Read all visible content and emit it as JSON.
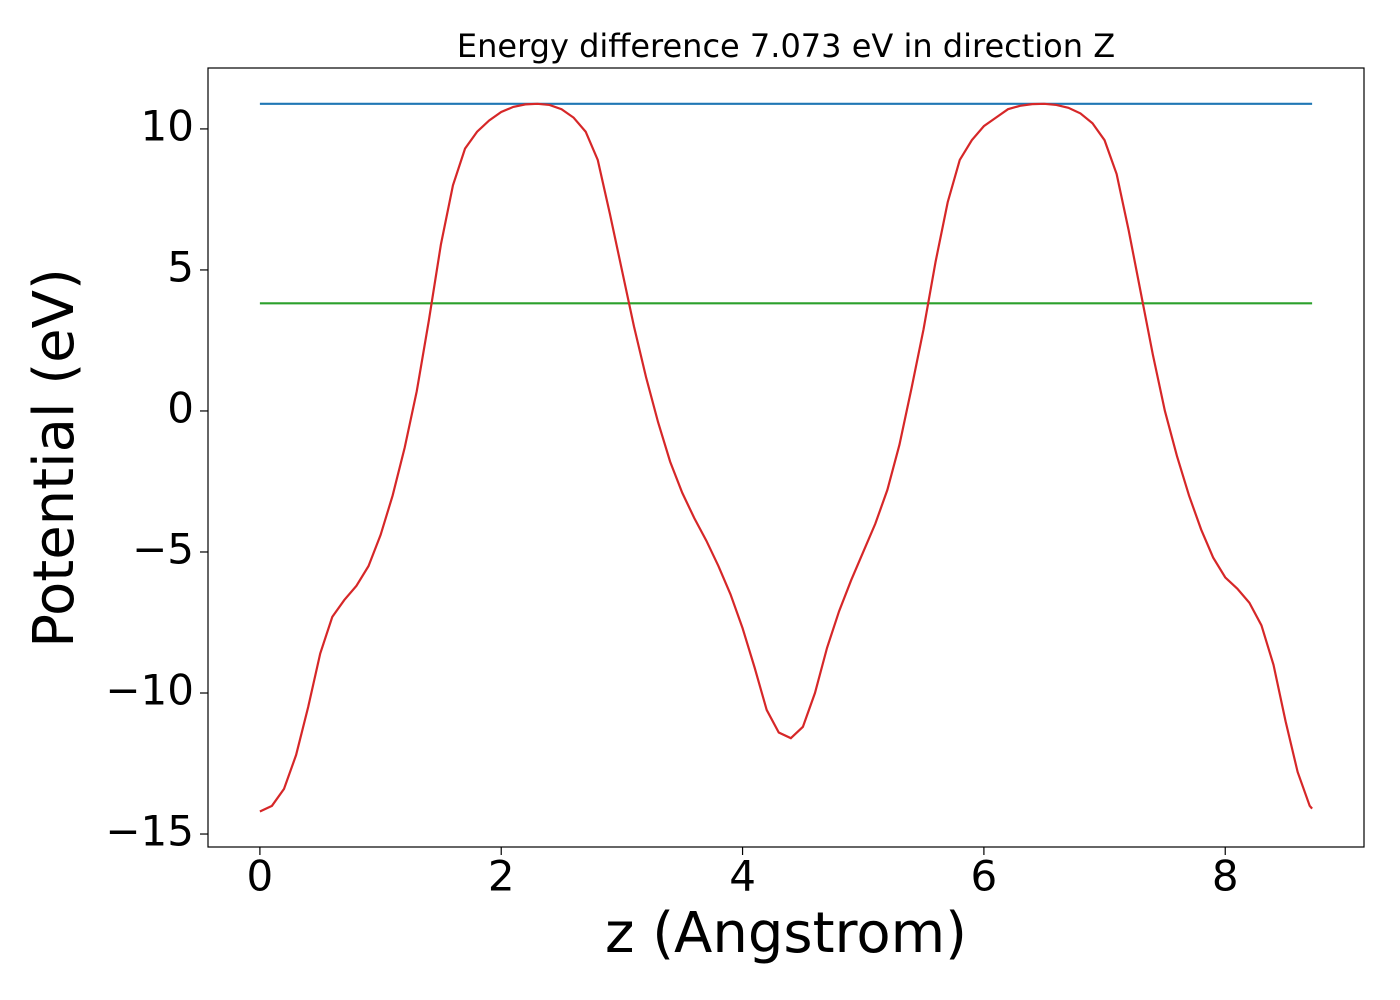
{
  "chart_data": {
    "type": "line",
    "title": "Energy difference 7.073 eV in direction Z",
    "xlabel": "z (Angstrom)",
    "ylabel": "Potential (eV)",
    "xlim": [
      -0.43,
      9.15
    ],
    "ylim": [
      -15.46,
      12.16
    ],
    "xticks": [
      0,
      2,
      4,
      6,
      8
    ],
    "yticks": [
      {
        "value": -15,
        "label": "−15"
      },
      {
        "value": -10,
        "label": "−10"
      },
      {
        "value": -5,
        "label": "−5"
      },
      0,
      5,
      10
    ],
    "series": [
      {
        "color": "#1f77b4",
        "x": [
          0,
          8.72
        ],
        "values": [
          10.89,
          10.89
        ]
      },
      {
        "color": "#2ca02c",
        "x": [
          0,
          8.72
        ],
        "values": [
          3.817,
          3.817
        ]
      },
      {
        "color": "#d62728",
        "x": [
          0,
          0.1,
          0.2,
          0.3,
          0.4,
          0.5,
          0.6,
          0.7,
          0.8,
          0.9,
          1.0,
          1.1,
          1.2,
          1.3,
          1.4,
          1.5,
          1.6,
          1.7,
          1.8,
          1.9,
          2.0,
          2.1,
          2.2,
          2.3,
          2.4,
          2.5,
          2.6,
          2.7,
          2.8,
          2.9,
          3.0,
          3.1,
          3.2,
          3.3,
          3.4,
          3.5,
          3.6,
          3.7,
          3.8,
          3.9,
          4.0,
          4.1,
          4.2,
          4.3,
          4.4,
          4.5,
          4.6,
          4.7,
          4.8,
          4.9,
          5.0,
          5.1,
          5.2,
          5.3,
          5.4,
          5.5,
          5.6,
          5.7,
          5.8,
          5.9,
          6.0,
          6.1,
          6.2,
          6.3,
          6.4,
          6.5,
          6.6,
          6.7,
          6.8,
          6.9,
          7.0,
          7.1,
          7.2,
          7.3,
          7.4,
          7.5,
          7.6,
          7.7,
          7.8,
          7.9,
          8.0,
          8.1,
          8.2,
          8.3,
          8.4,
          8.5,
          8.6,
          8.7,
          8.72
        ],
        "values": [
          -14.2,
          -14.0,
          -13.4,
          -12.2,
          -10.5,
          -8.6,
          -7.3,
          -6.7,
          -6.2,
          -5.5,
          -4.4,
          -3.0,
          -1.3,
          0.7,
          3.2,
          5.9,
          8.0,
          9.3,
          9.9,
          10.3,
          10.6,
          10.78,
          10.87,
          10.89,
          10.85,
          10.7,
          10.4,
          9.9,
          8.9,
          7.0,
          5.0,
          3.0,
          1.2,
          -0.4,
          -1.8,
          -2.9,
          -3.8,
          -4.6,
          -5.5,
          -6.5,
          -7.7,
          -9.1,
          -10.6,
          -11.4,
          -11.6,
          -11.2,
          -10.0,
          -8.4,
          -7.1,
          -6.0,
          -5.0,
          -4.0,
          -2.8,
          -1.2,
          0.8,
          2.9,
          5.3,
          7.4,
          8.9,
          9.6,
          10.1,
          10.4,
          10.7,
          10.82,
          10.88,
          10.89,
          10.85,
          10.75,
          10.55,
          10.2,
          9.6,
          8.4,
          6.4,
          4.2,
          2.0,
          0.0,
          -1.6,
          -3.0,
          -4.2,
          -5.2,
          -5.9,
          -6.3,
          -6.8,
          -7.6,
          -9.0,
          -11.0,
          -12.8,
          -14.0,
          -14.1
        ]
      }
    ]
  }
}
